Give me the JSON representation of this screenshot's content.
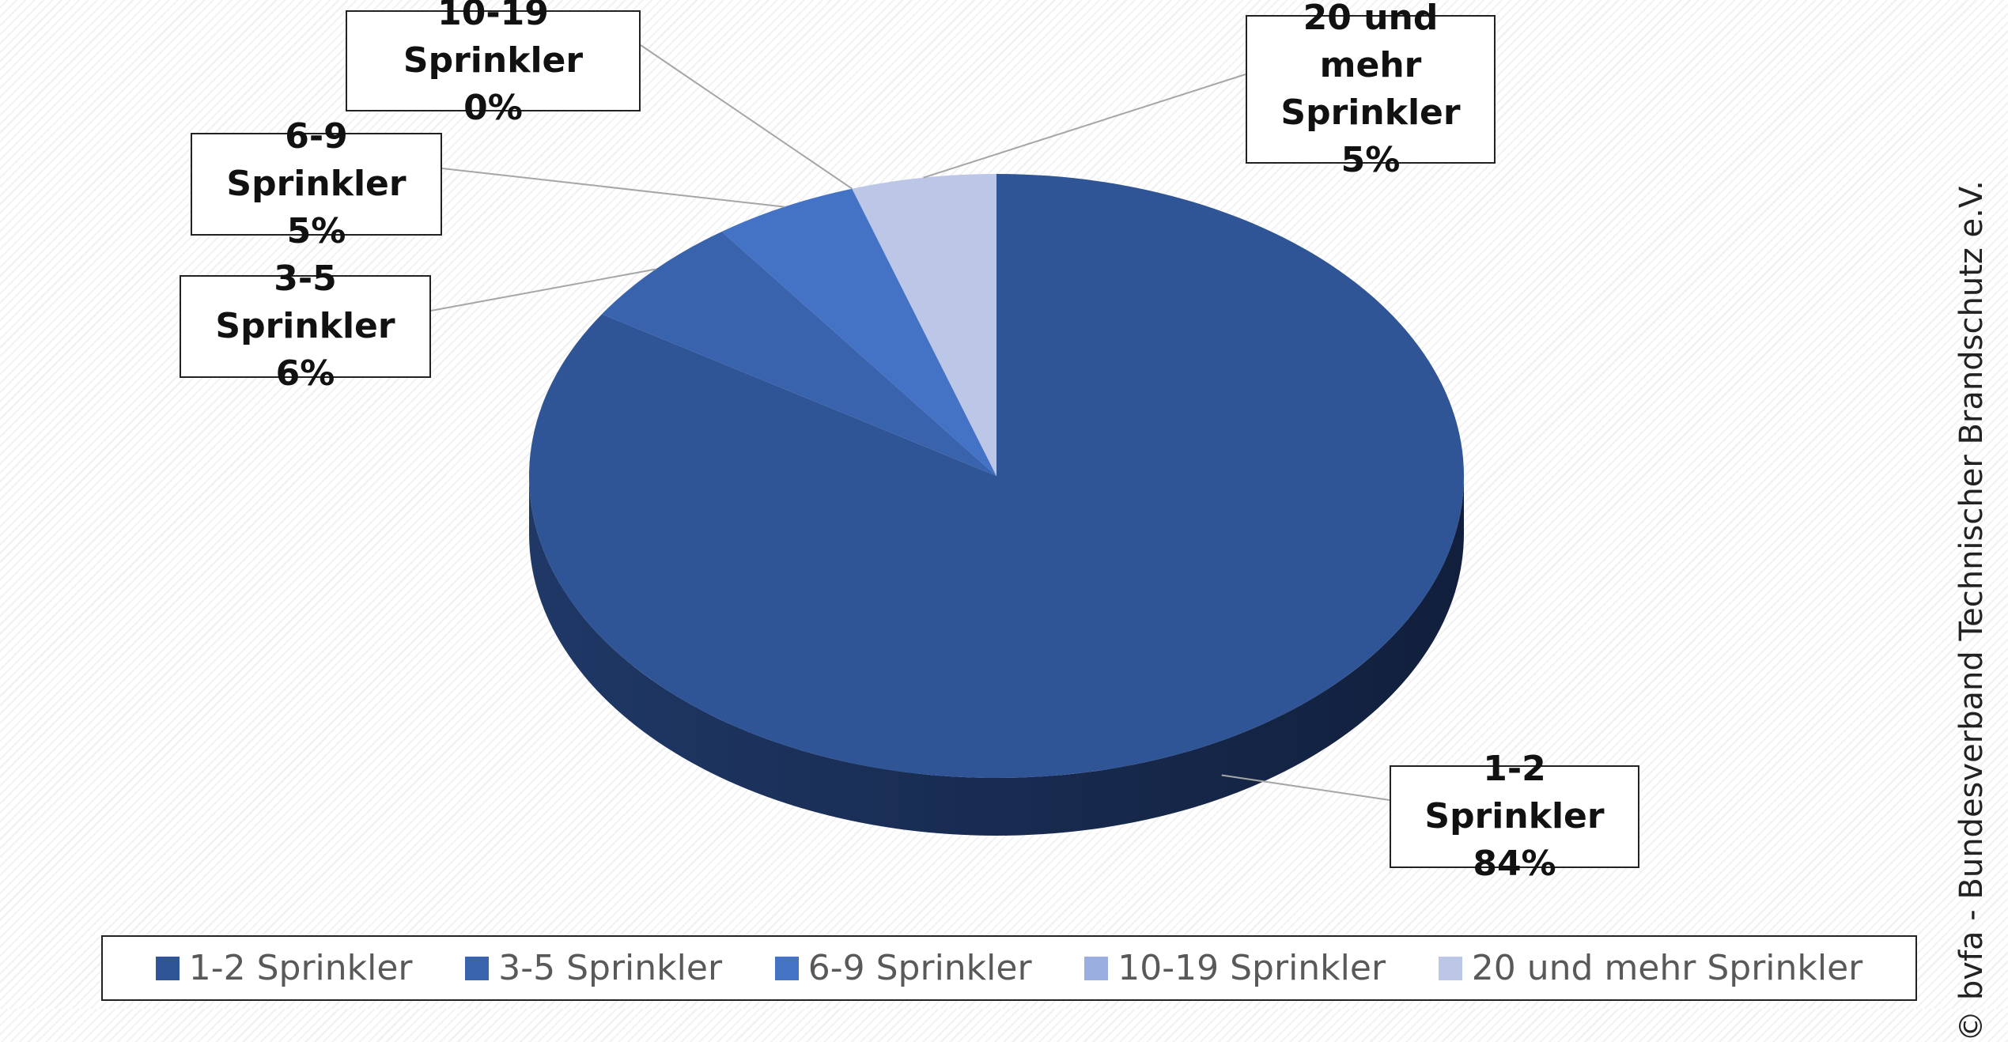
{
  "chart_data": {
    "type": "pie",
    "categories": [
      "1-2 Sprinkler",
      "3-5 Sprinkler",
      "6-9 Sprinkler",
      "10-19 Sprinkler",
      "20 und mehr Sprinkler"
    ],
    "values": [
      84,
      6,
      5,
      0,
      5
    ],
    "value_labels": [
      "84%",
      "6%",
      "5%",
      "0%",
      "5%"
    ],
    "colors": [
      "#2f5597",
      "#3a63ad",
      "#4472c4",
      "#9aaee0",
      "#bcc6e6"
    ],
    "legend": "bottom",
    "source": "© bvfa - Bundesverband Technischer Brandschutz e.V."
  }
}
